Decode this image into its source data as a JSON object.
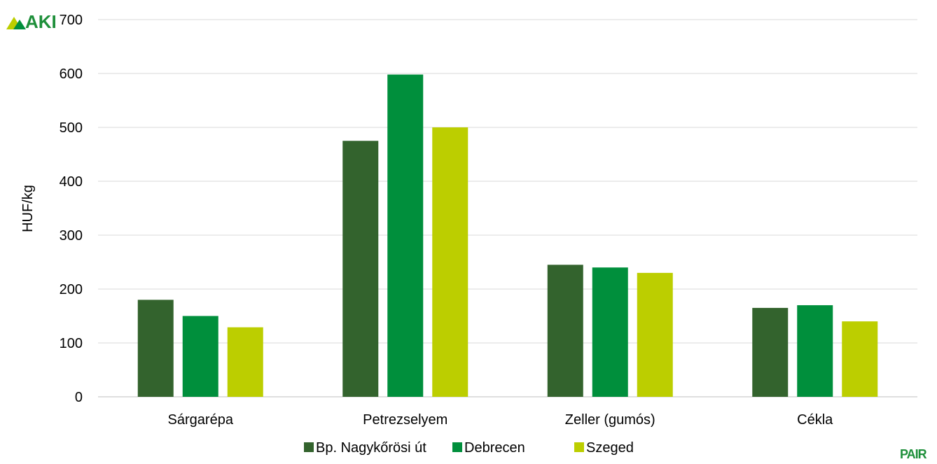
{
  "logos": {
    "top_left": "AKI",
    "bottom_right": "PAIR"
  },
  "colors": {
    "grid": "#d9d9d9",
    "axis": "#bfbfbf"
  },
  "chart_data": {
    "type": "bar",
    "title": "",
    "xlabel": "",
    "ylabel": "HUF/kg",
    "ylim": [
      0,
      700
    ],
    "yticks": [
      0,
      100,
      200,
      300,
      400,
      500,
      600,
      700
    ],
    "grid": true,
    "legend_position": "bottom",
    "categories": [
      "Sárgarépa",
      "Petrezselyem",
      "Zeller (gumós)",
      "Cékla"
    ],
    "series": [
      {
        "name": "Bp. Nagykőrösi út",
        "color": "#33632d",
        "values": [
          180,
          475,
          245,
          165
        ]
      },
      {
        "name": "Debrecen",
        "color": "#008f3c",
        "values": [
          150,
          598,
          240,
          170
        ]
      },
      {
        "name": "Szeged",
        "color": "#bcce00",
        "values": [
          129,
          500,
          230,
          140
        ]
      }
    ]
  }
}
